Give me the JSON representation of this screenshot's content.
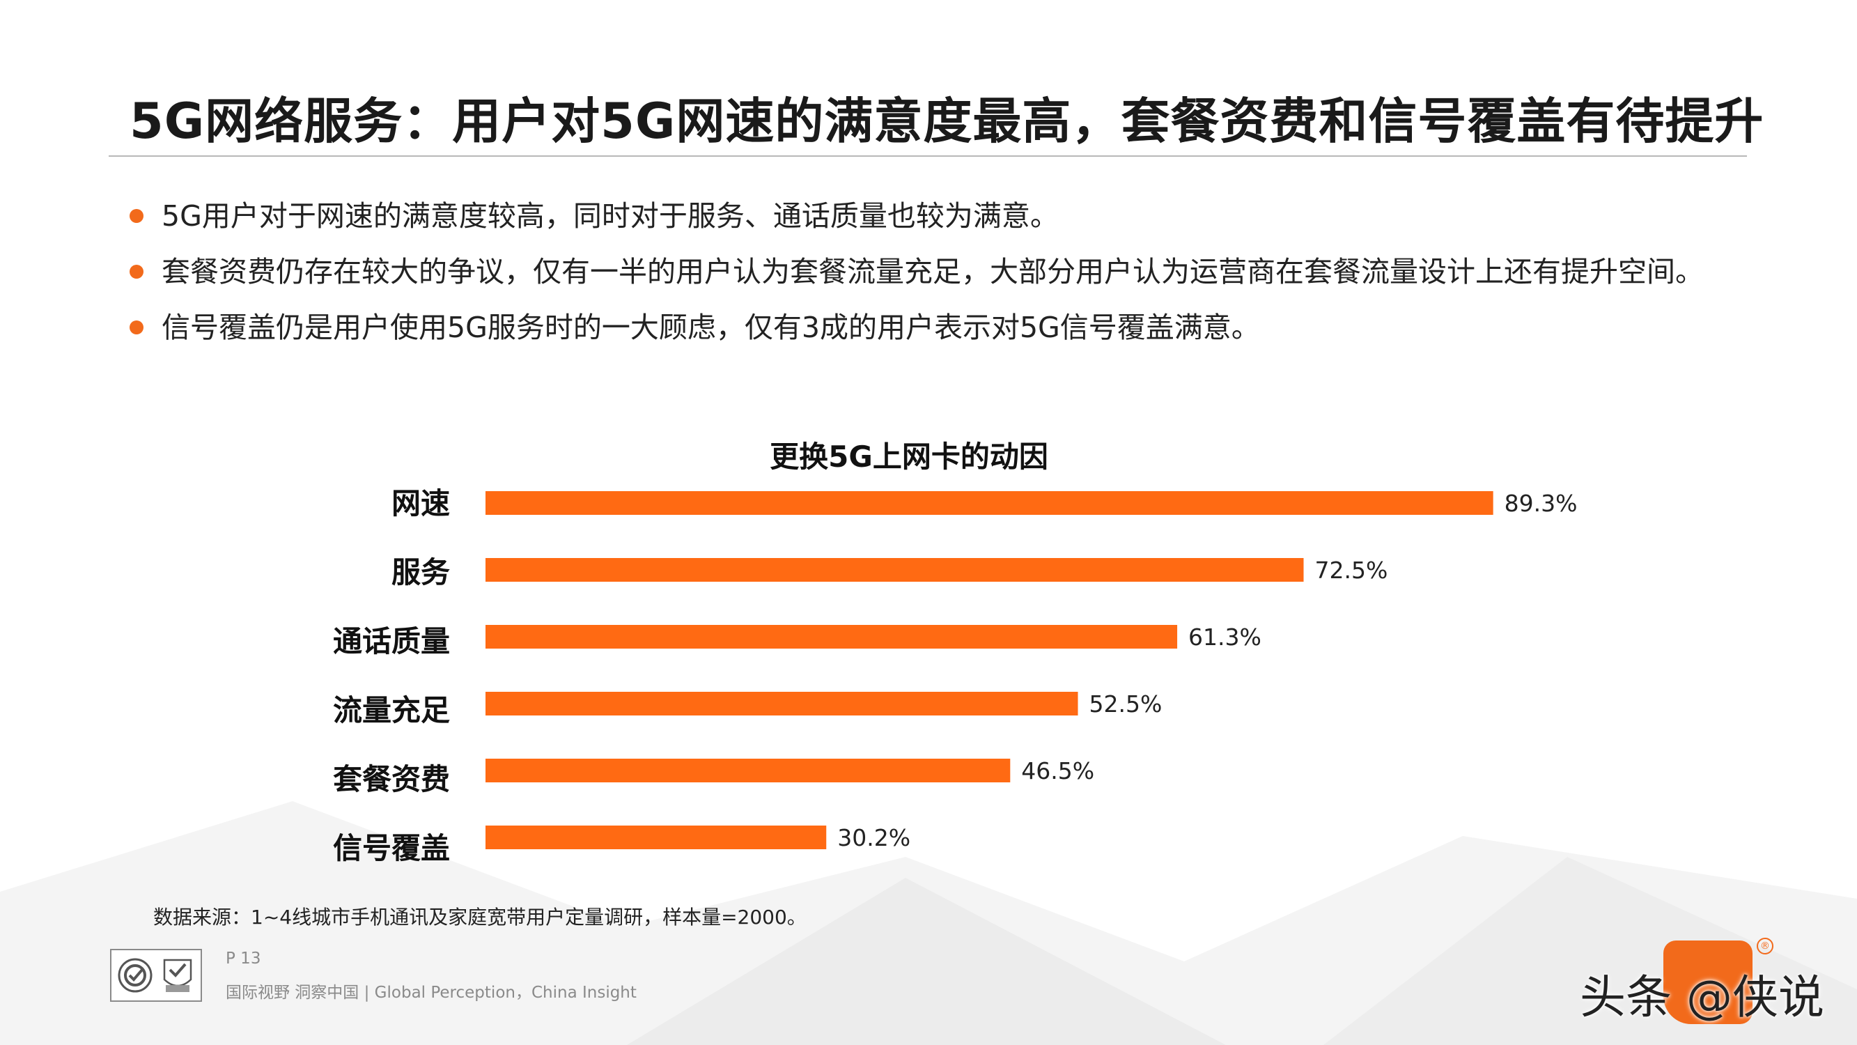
{
  "title": "5G网络服务：用户对5G网速的满意度最高，套餐资费和信号覆盖有待提升",
  "bullets": [
    "5G用户对于网速的满意度较高，同时对于服务、通话质量也较为满意。",
    "套餐资费仍存在较大的争议，仅有一半的用户认为套餐流量充足，大部分用户认为运营商在套餐流量设计上还有提升空间。",
    "信号覆盖仍是用户使用5G服务时的一大顾虑，仅有3成的用户表示对5G信号覆盖满意。"
  ],
  "chart_data": {
    "type": "bar",
    "orientation": "horizontal",
    "title": "更换5G上网卡的动因",
    "categories": [
      "网速",
      "服务",
      "通话质量",
      "流量充足",
      "套餐资费",
      "信号覆盖"
    ],
    "values": [
      89.3,
      72.5,
      61.3,
      52.5,
      46.5,
      30.2
    ],
    "value_labels": [
      "89.3%",
      "72.5%",
      "61.3%",
      "52.5%",
      "46.5%",
      "30.2%"
    ],
    "unit": "%",
    "xlim": [
      0,
      100
    ],
    "grid": false,
    "legend": "none",
    "bar_color": "#ff6a13"
  },
  "source": "数据来源：1~4线城市手机通讯及家庭宽带用户定量调研，样本量=2000。",
  "footer": {
    "page": "P 13",
    "tagline": "国际视野  洞察中国 |  Global Perception，China Insight"
  },
  "watermark": "头条 @侠说",
  "colors": {
    "accent": "#f26a1b",
    "bar": "#ff6a13",
    "rule": "#b8b8b8"
  }
}
